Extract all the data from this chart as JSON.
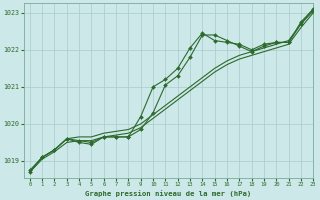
{
  "title": "Graphe pression niveau de la mer (hPa)",
  "bg_color": "#cce8e8",
  "grid_color": "#aacccc",
  "line_color": "#2d6a2d",
  "xlim": [
    -0.5,
    23
  ],
  "ylim": [
    1018.55,
    1023.25
  ],
  "yticks": [
    1019,
    1020,
    1021,
    1022,
    1023
  ],
  "xticks": [
    0,
    1,
    2,
    3,
    4,
    5,
    6,
    7,
    8,
    9,
    10,
    11,
    12,
    13,
    14,
    15,
    16,
    17,
    18,
    19,
    20,
    21,
    22,
    23
  ],
  "line1": {
    "x": [
      0,
      1,
      2,
      3,
      4,
      5,
      6,
      7,
      8,
      9,
      10,
      11,
      12,
      13,
      14,
      15,
      16,
      17,
      18,
      19,
      20,
      21,
      22,
      23
    ],
    "y": [
      1018.7,
      1019.05,
      1019.25,
      1019.5,
      1019.55,
      1019.55,
      1019.65,
      1019.7,
      1019.75,
      1019.9,
      1020.15,
      1020.4,
      1020.65,
      1020.9,
      1021.15,
      1021.4,
      1021.6,
      1021.75,
      1021.85,
      1021.95,
      1022.05,
      1022.15,
      1022.6,
      1023.0
    ]
  },
  "line2": {
    "x": [
      0,
      1,
      2,
      3,
      4,
      5,
      6,
      7,
      8,
      9,
      10,
      11,
      12,
      13,
      14,
      15,
      16,
      17,
      18,
      19,
      20,
      21,
      22,
      23
    ],
    "y": [
      1018.7,
      1019.1,
      1019.3,
      1019.6,
      1019.65,
      1019.65,
      1019.75,
      1019.8,
      1019.85,
      1020.0,
      1020.25,
      1020.5,
      1020.75,
      1021.0,
      1021.25,
      1021.5,
      1021.7,
      1021.85,
      1021.95,
      1022.05,
      1022.15,
      1022.25,
      1022.7,
      1023.1
    ]
  },
  "line3_markers": {
    "x": [
      0,
      1,
      2,
      3,
      4,
      5,
      6,
      7,
      8,
      9,
      10,
      11,
      12,
      13,
      14,
      15,
      16,
      17,
      18,
      19,
      20,
      21,
      22,
      23
    ],
    "y": [
      1018.75,
      1019.1,
      1019.3,
      1019.6,
      1019.55,
      1019.5,
      1019.65,
      1019.65,
      1019.65,
      1019.85,
      1020.3,
      1021.05,
      1021.3,
      1021.8,
      1022.4,
      1022.4,
      1022.25,
      1022.1,
      1021.95,
      1022.1,
      1022.2,
      1022.2,
      1022.7,
      1023.05
    ]
  },
  "line4_markers": {
    "x": [
      0,
      1,
      2,
      3,
      4,
      5,
      6,
      7,
      8,
      9,
      10,
      11,
      12,
      13,
      14,
      15,
      16,
      17,
      18,
      19,
      20,
      21,
      22,
      23
    ],
    "y": [
      1018.7,
      1019.1,
      1019.3,
      1019.6,
      1019.5,
      1019.45,
      1019.65,
      1019.65,
      1019.65,
      1020.2,
      1021.0,
      1021.2,
      1021.5,
      1022.05,
      1022.45,
      1022.25,
      1022.2,
      1022.15,
      1022.0,
      1022.15,
      1022.2,
      1022.2,
      1022.75,
      1023.1
    ]
  }
}
